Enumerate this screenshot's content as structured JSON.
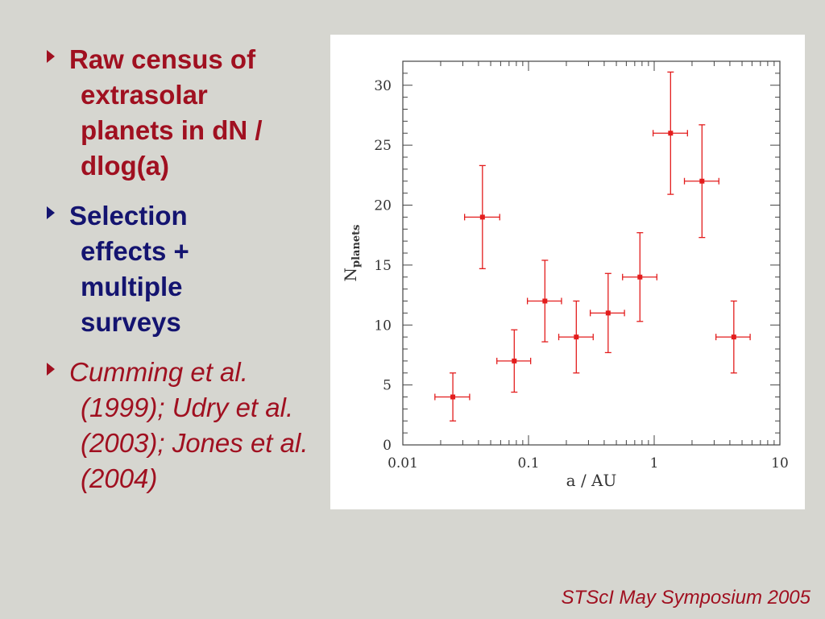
{
  "bullets": [
    {
      "text": "Raw census of extrasolar planets in dN / dlog(a)"
    },
    {
      "text": "Selection effects + multiple surveys"
    },
    {
      "text": "Cumming et al. (1999); Udry et al. (2003); Jones et al. (2004)"
    }
  ],
  "footer": "STScI May Symposium 2005",
  "colors": {
    "primary": "#a01020",
    "secondary": "#141470",
    "data": "#e31d1d",
    "background": "#d6d6d0"
  },
  "chart_data": {
    "type": "scatter",
    "title": "",
    "xlabel": "a / AU",
    "ylabel_main": "N",
    "ylabel_sub": "planets",
    "xscale": "log",
    "xlim": [
      0.01,
      10
    ],
    "ylim": [
      0,
      32
    ],
    "x_ticks": [
      0.01,
      0.1,
      1,
      10
    ],
    "x_tick_labels": [
      "0.01",
      "0.1",
      "1",
      "10"
    ],
    "y_ticks": [
      0,
      5,
      10,
      15,
      20,
      25,
      30
    ],
    "y_tick_labels": [
      "0",
      "5",
      "10",
      "15",
      "20",
      "25",
      "30"
    ],
    "grid": false,
    "points": [
      {
        "x": 0.025,
        "y": 4,
        "xerr": [
          0.018,
          0.034
        ],
        "yerr": [
          2.0,
          6.0
        ]
      },
      {
        "x": 0.043,
        "y": 19,
        "xerr": [
          0.031,
          0.059
        ],
        "yerr": [
          14.7,
          23.3
        ]
      },
      {
        "x": 0.077,
        "y": 7,
        "xerr": [
          0.056,
          0.104
        ],
        "yerr": [
          4.4,
          9.6
        ]
      },
      {
        "x": 0.135,
        "y": 12,
        "xerr": [
          0.098,
          0.183
        ],
        "yerr": [
          8.6,
          15.4
        ]
      },
      {
        "x": 0.24,
        "y": 9,
        "xerr": [
          0.174,
          0.327
        ],
        "yerr": [
          6.0,
          12.0
        ]
      },
      {
        "x": 0.43,
        "y": 11,
        "xerr": [
          0.31,
          0.58
        ],
        "yerr": [
          7.7,
          14.3
        ]
      },
      {
        "x": 0.77,
        "y": 14,
        "xerr": [
          0.56,
          1.05
        ],
        "yerr": [
          10.3,
          17.7
        ]
      },
      {
        "x": 1.35,
        "y": 26,
        "xerr": [
          0.98,
          1.84
        ],
        "yerr": [
          20.9,
          31.1
        ]
      },
      {
        "x": 2.4,
        "y": 22,
        "xerr": [
          1.74,
          3.27
        ],
        "yerr": [
          17.3,
          26.7
        ]
      },
      {
        "x": 4.3,
        "y": 9,
        "xerr": [
          3.1,
          5.8
        ],
        "yerr": [
          6.0,
          12.0
        ]
      }
    ]
  }
}
